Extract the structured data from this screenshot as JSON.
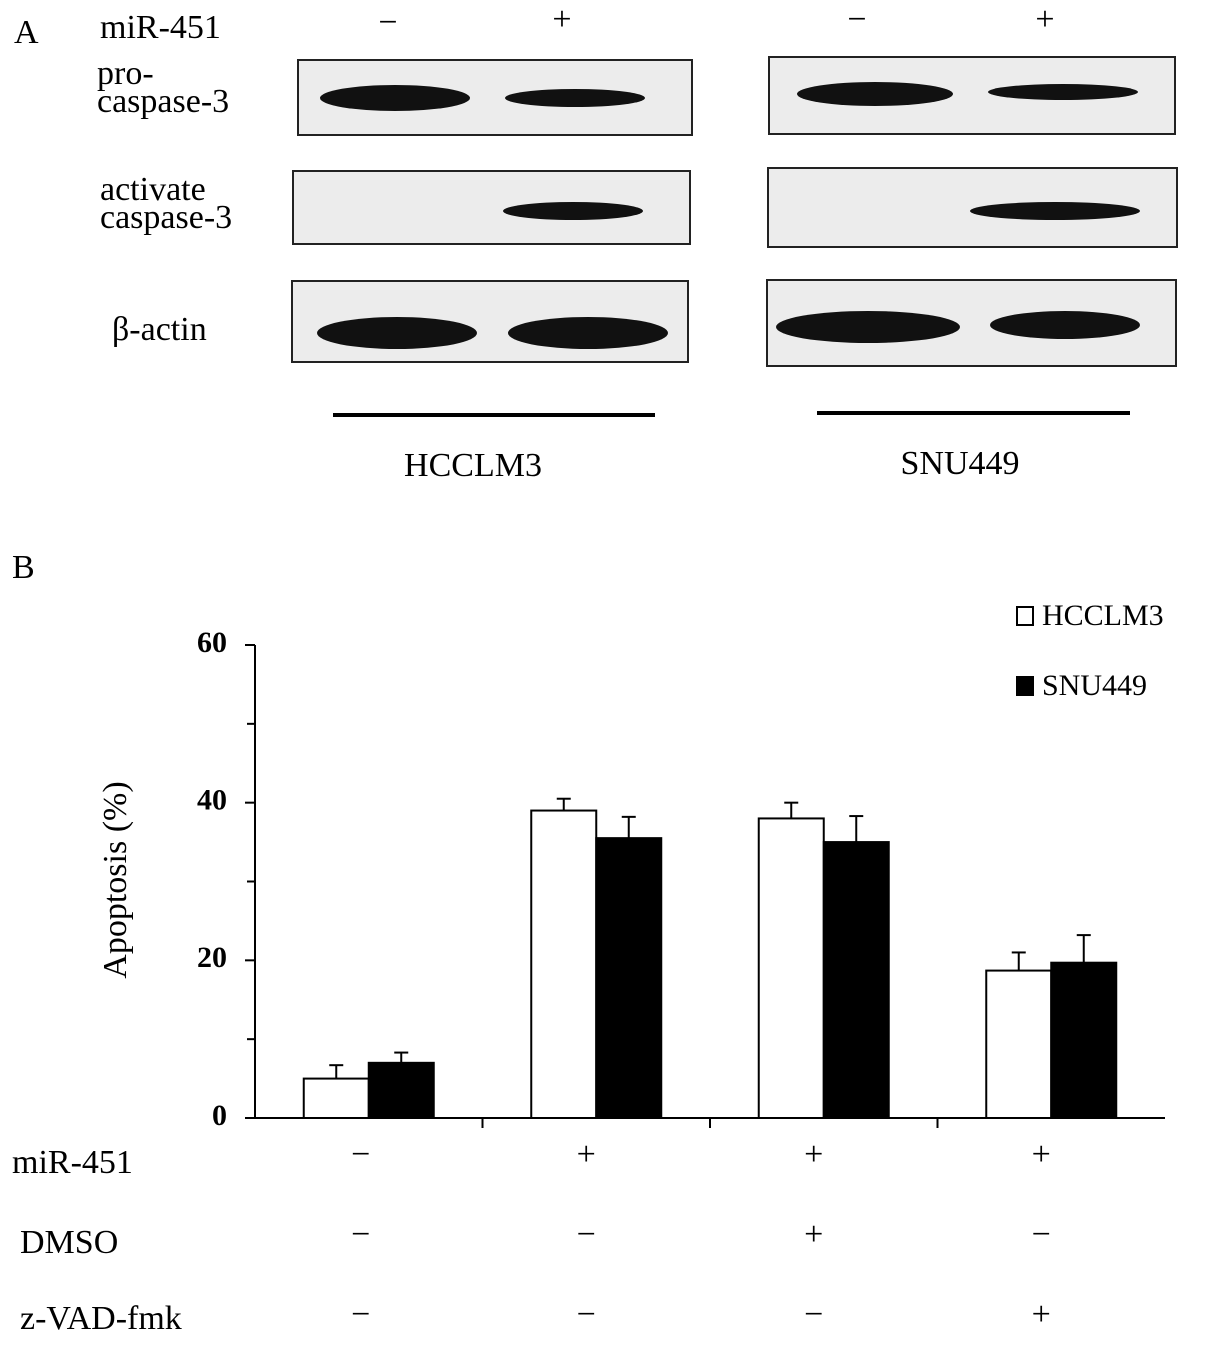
{
  "panel_a": {
    "label": "A",
    "treatment": "miR-451",
    "signs": [
      "−",
      "+",
      "−",
      "+"
    ],
    "rows": [
      {
        "lines": [
          "pro-",
          "caspase-3"
        ]
      },
      {
        "lines": [
          "activate",
          "caspase-3"
        ]
      },
      {
        "lines": [
          "β-actin"
        ]
      }
    ],
    "cell_lines": [
      "HCCLM3",
      "SNU449"
    ]
  },
  "chart_data": {
    "type": "bar",
    "panel_label": "B",
    "ylabel": "Apoptosis (%)",
    "categories": [
      null,
      null,
      null,
      null
    ],
    "series": [
      {
        "name": "HCCLM3",
        "color": "#ffffff",
        "values": [
          5,
          39,
          38,
          18.7
        ],
        "errors": [
          1.7,
          1.5,
          2,
          2.3
        ]
      },
      {
        "name": "SNU449",
        "color": "#000000",
        "values": [
          7,
          35.5,
          35,
          19.7
        ],
        "errors": [
          1.3,
          2.7,
          3.3,
          3.5
        ]
      }
    ],
    "ylim": [
      0,
      60
    ],
    "yticks": [
      0,
      20,
      40,
      60
    ],
    "yminorticks": [
      10,
      30,
      50
    ],
    "legend": "upper right",
    "conditions": [
      {
        "name": "miR-451",
        "values": [
          "−",
          "+",
          "+",
          "+"
        ]
      },
      {
        "name": "DMSO",
        "values": [
          "−",
          "−",
          "+",
          "−"
        ]
      },
      {
        "name": "z-VAD-fmk",
        "values": [
          "−",
          "−",
          "−",
          "+"
        ]
      }
    ]
  }
}
